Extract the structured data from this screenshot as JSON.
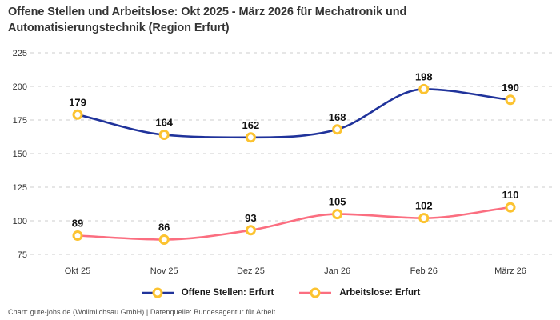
{
  "header": {
    "title": "Offene Stellen und Arbeitslose: Okt 2025 - März 2026 für Mechatronik und Automatisierungstechnik (Region Erfurt)"
  },
  "footer": {
    "text": "Chart: gute-jobs.de (Wollmilchsau GmbH) | Datenquelle: Bundesagentur für Arbeit"
  },
  "chart_data": {
    "type": "line",
    "title": "Offene Stellen und Arbeitslose: Okt 2025 - März 2026 für Mechatronik und Automatisierungstechnik (Region Erfurt)",
    "categories": [
      "Okt 25",
      "Nov 25",
      "Dez 25",
      "Jan 26",
      "Feb 26",
      "März 26"
    ],
    "series": [
      {
        "name": "Offene Stellen: Erfurt",
        "color": "#20339b",
        "values": [
          179,
          164,
          162,
          168,
          198,
          190
        ]
      },
      {
        "name": "Arbeitslose: Erfurt",
        "color": "#fb6e80",
        "values": [
          89,
          86,
          93,
          105,
          102,
          110
        ]
      }
    ],
    "xlabel": "",
    "ylabel": "",
    "ylim": [
      75,
      225
    ],
    "yticks": [
      75,
      100,
      125,
      150,
      175,
      200,
      225
    ],
    "grid": "horizontal-dashed",
    "legend_position": "bottom",
    "curve": "smooth-monotone",
    "marker_ring_color": "#fcc330",
    "marker_fill_color": "#ffffff",
    "grid_color": "#cccccc",
    "axis_text_color": "#333333",
    "point_label_color": "#111111"
  }
}
